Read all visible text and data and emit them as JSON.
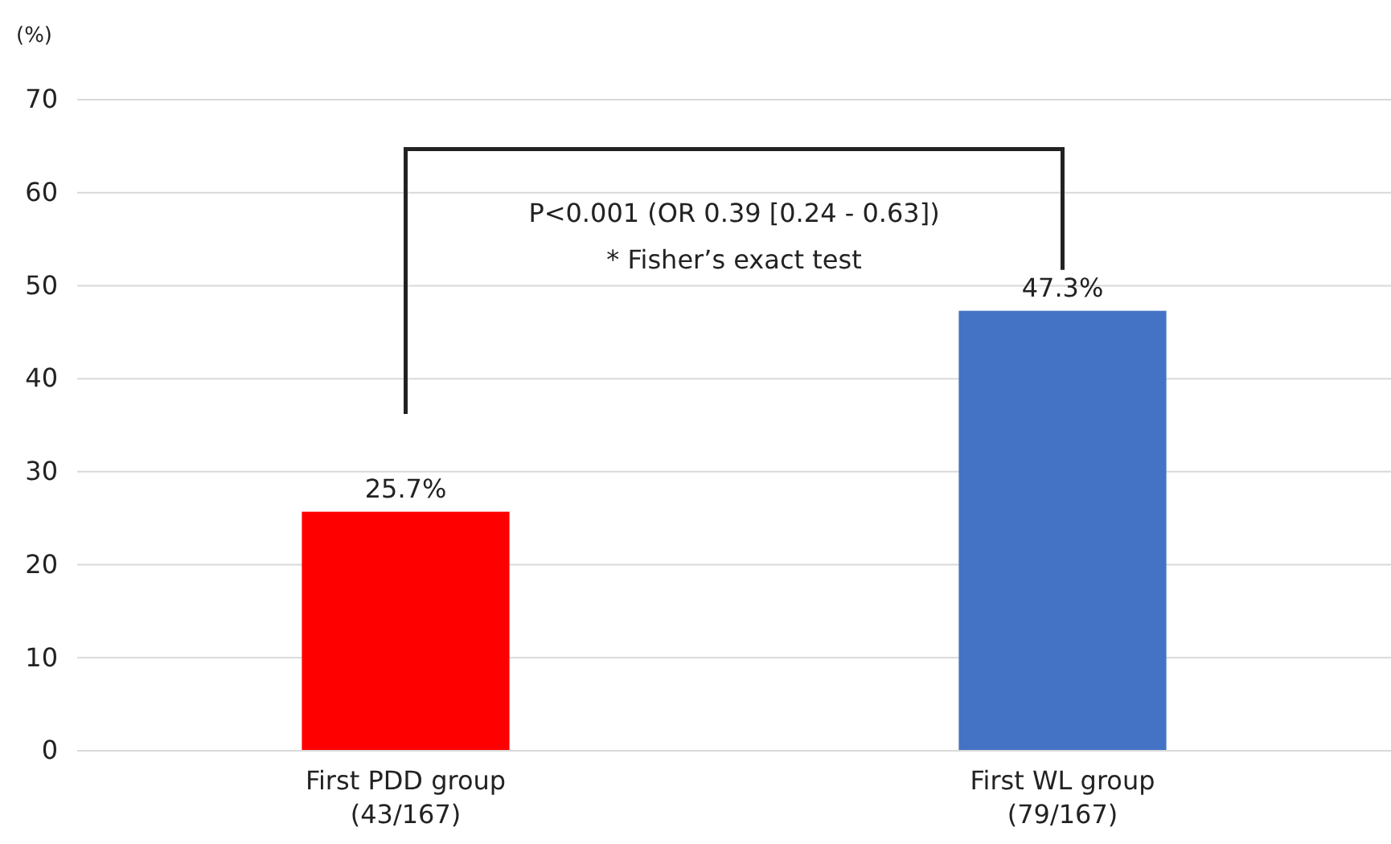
{
  "chart_data": {
    "type": "bar",
    "ylabel": "(%)",
    "categories": [
      "First PDD group\n(43/167)",
      "First WL group\n(79/167)"
    ],
    "values": [
      25.7,
      47.3
    ],
    "colors": [
      "#ff0000",
      "#4472c4"
    ],
    "value_labels": [
      "25.7%",
      "47.3%"
    ],
    "ylim": [
      0,
      70
    ],
    "yticks": [
      0,
      10,
      20,
      30,
      40,
      50,
      60,
      70
    ],
    "grid": "y",
    "annotations": [
      "P<0.001 (OR 0.39 [0.24 - 0.63])",
      "* Fisher’s exact test"
    ]
  }
}
